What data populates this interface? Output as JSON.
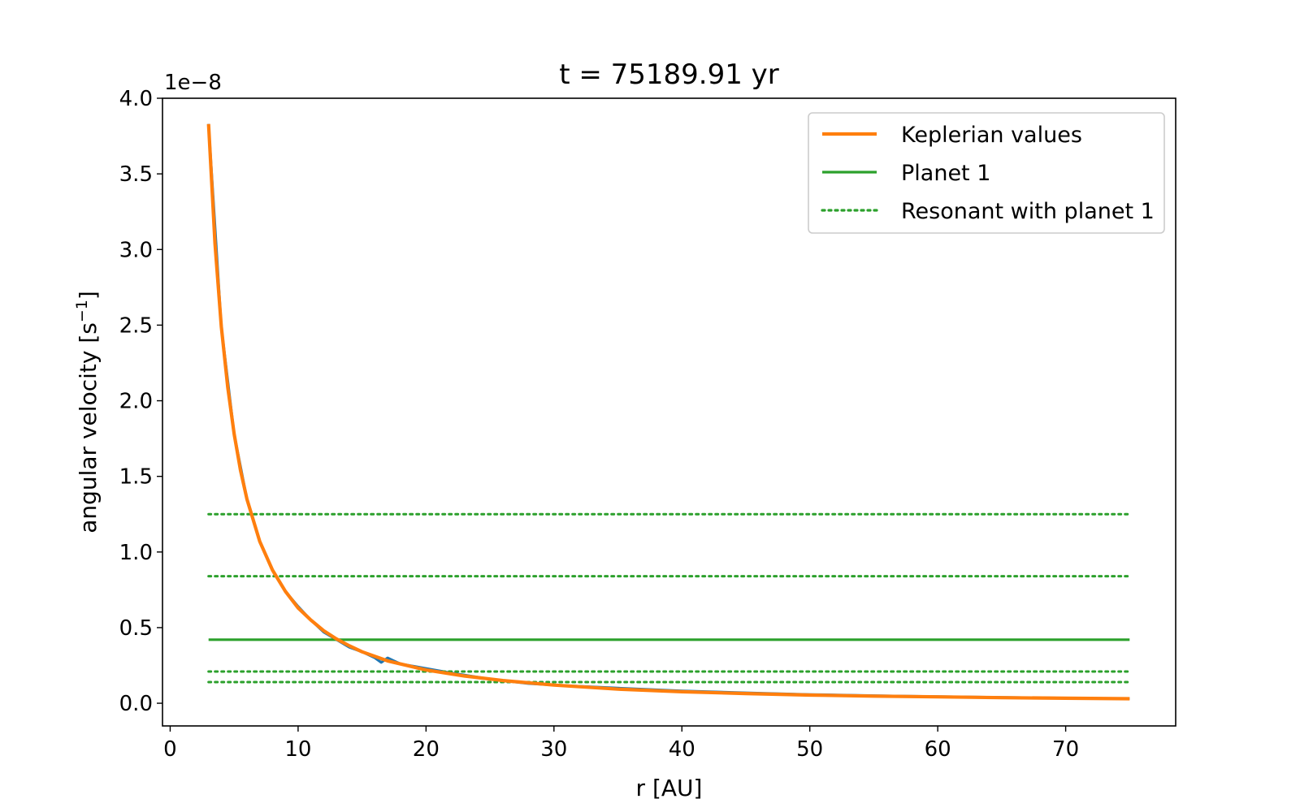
{
  "chart_data": {
    "type": "line",
    "title": "t = 75189.91 yr",
    "xlabel": "r [AU]",
    "ylabel": "angular velocity [s",
    "ylabel_sup": "−1",
    "ylabel_end": "]",
    "y_offset_label": "1e−8",
    "xlim": [
      -0.6,
      78.6
    ],
    "ylim": [
      -0.15,
      4.0
    ],
    "xticks": [
      0,
      10,
      20,
      30,
      40,
      50,
      60,
      70
    ],
    "xtick_labels": [
      "0",
      "10",
      "20",
      "30",
      "40",
      "50",
      "60",
      "70"
    ],
    "yticks": [
      0.0,
      0.5,
      1.0,
      1.5,
      2.0,
      2.5,
      3.0,
      3.5,
      4.0
    ],
    "ytick_labels": [
      "0.0",
      "0.5",
      "1.0",
      "1.5",
      "2.0",
      "2.5",
      "3.0",
      "3.5",
      "4.0"
    ],
    "grid": false,
    "legend_position": "top-right",
    "series": [
      {
        "name": "",
        "color": "#1f77b4",
        "style": "solid",
        "x": [
          3,
          4,
          5,
          6,
          7,
          8,
          9,
          10,
          11,
          12,
          13,
          14,
          15,
          16,
          16.5,
          17,
          17.5,
          18,
          20,
          22,
          25,
          28,
          30,
          35,
          40,
          45,
          50,
          55,
          60,
          65,
          70,
          75
        ],
        "y": [
          3.83,
          2.49,
          1.78,
          1.35,
          1.07,
          0.88,
          0.74,
          0.64,
          0.55,
          0.47,
          0.42,
          0.37,
          0.34,
          0.3,
          0.27,
          0.3,
          0.28,
          0.26,
          0.23,
          0.2,
          0.16,
          0.13,
          0.12,
          0.1,
          0.082,
          0.069,
          0.058,
          0.05,
          0.044,
          0.039,
          0.034,
          0.031
        ]
      },
      {
        "name": "Keplerian values",
        "color": "#ff7f0e",
        "style": "solid",
        "x": [
          3,
          3.5,
          4,
          4.5,
          5,
          5.5,
          6,
          7,
          8,
          9,
          10,
          11,
          12,
          13,
          14,
          15,
          17,
          20,
          23,
          26,
          30,
          35,
          40,
          45,
          50,
          55,
          60,
          65,
          70,
          75
        ],
        "y": [
          3.83,
          3.04,
          2.49,
          2.09,
          1.78,
          1.54,
          1.35,
          1.07,
          0.88,
          0.74,
          0.63,
          0.55,
          0.48,
          0.425,
          0.38,
          0.34,
          0.28,
          0.22,
          0.18,
          0.15,
          0.12,
          0.093,
          0.076,
          0.064,
          0.054,
          0.047,
          0.042,
          0.037,
          0.033,
          0.03
        ]
      },
      {
        "name": "Planet 1",
        "color": "#2ca02c",
        "style": "solid",
        "x": [
          3,
          75
        ],
        "y": [
          0.42,
          0.42
        ]
      },
      {
        "name": "Resonant with planet 1",
        "color": "#2ca02c",
        "style": "dotted",
        "levels": [
          1.25,
          0.84,
          0.21,
          0.14
        ],
        "x": [
          3,
          75
        ]
      }
    ]
  }
}
